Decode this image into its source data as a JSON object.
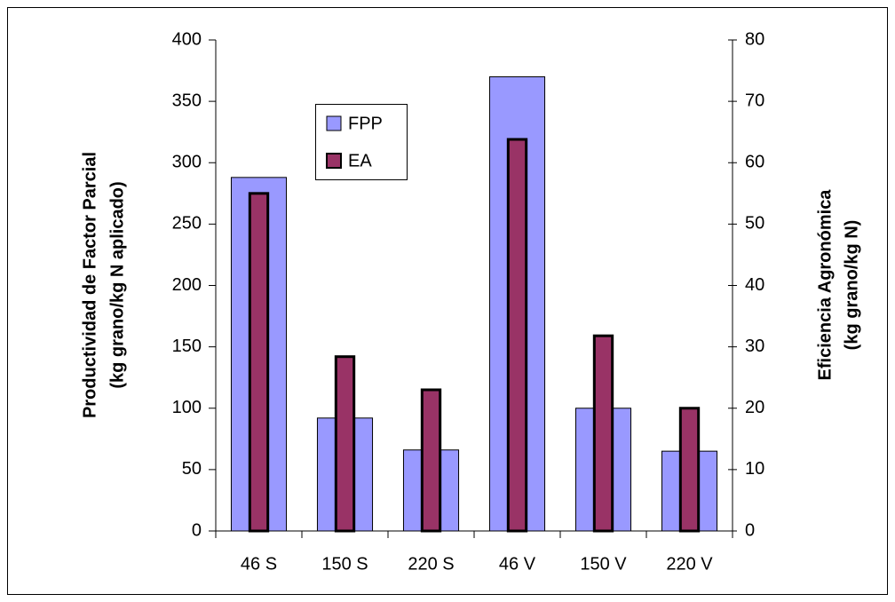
{
  "chart_data": {
    "type": "bar",
    "categories": [
      "46 S",
      "150 S",
      "220 S",
      "46 V",
      "150 V",
      "220 V"
    ],
    "series": [
      {
        "name": "FPP",
        "color": "#9999ff",
        "values": [
          288,
          92,
          66,
          370,
          100,
          65
        ]
      },
      {
        "name": "EA",
        "color": "#993366",
        "axis": "y2",
        "values": [
          55,
          28.4,
          23,
          63.8,
          31.8,
          20
        ]
      }
    ],
    "ylabel": [
      "Productividad de Factor Parcial",
      "(kg grano/kg N aplicado)"
    ],
    "y2label": [
      "Eficiencia Agronómica",
      "(kg grano/kg N)"
    ],
    "ylim": [
      0,
      400
    ],
    "yticks": [
      0,
      50,
      100,
      150,
      200,
      250,
      300,
      350,
      400
    ],
    "y2lim": [
      0,
      80
    ],
    "y2ticks": [
      0,
      10,
      20,
      30,
      40,
      50,
      60,
      70,
      80
    ]
  }
}
